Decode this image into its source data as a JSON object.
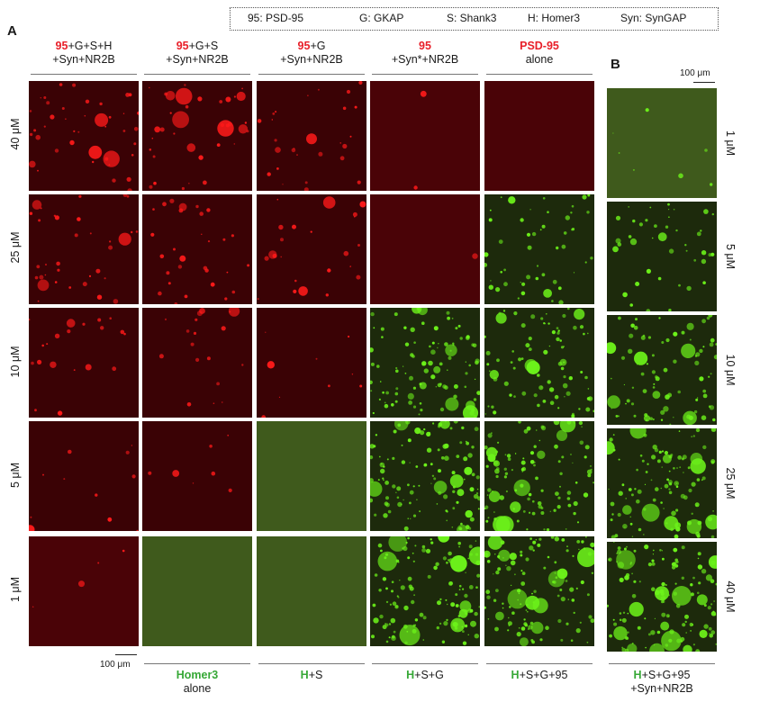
{
  "legend": {
    "items": [
      "95: PSD-95",
      "G: GKAP",
      "S: Shank3",
      "H: Homer3",
      "Syn: SynGAP"
    ]
  },
  "panels": {
    "a": "A",
    "b": "B"
  },
  "top_columns": [
    {
      "hl": "95",
      "rest1": "+G+S+H",
      "line2": "+Syn+NR2B"
    },
    {
      "hl": "95",
      "rest1": "+G+S",
      "line2": "+Syn+NR2B"
    },
    {
      "hl": "95",
      "rest1": "+G",
      "line2": "+Syn+NR2B"
    },
    {
      "hl": "95",
      "rest1": "",
      "line2": "+Syn*+NR2B"
    },
    {
      "hl": "PSD-95",
      "rest1": "",
      "line2": "alone"
    }
  ],
  "left_rows": [
    "40 μM",
    "25 μM",
    "10 μM",
    "5 μM",
    "1 μM"
  ],
  "right_rows": [
    "1 μM",
    "5 μM",
    "10 μM",
    "25 μM",
    "40 μM"
  ],
  "bottom_columns": [
    {
      "hl": "Homer3",
      "rest1": "",
      "line2": "alone"
    },
    {
      "hl": "H",
      "rest1": "+S",
      "line2": ""
    },
    {
      "hl": "H",
      "rest1": "+S+G",
      "line2": ""
    },
    {
      "hl": "H",
      "rest1": "+S+G+95",
      "line2": ""
    },
    {
      "hl": "H",
      "rest1": "+S+G+95",
      "line2": "+Syn+NR2B"
    }
  ],
  "scale_bars": {
    "top": "100 μm",
    "bottom": "100 μm"
  },
  "colors": {
    "red_highlight": "#e8202a",
    "green_highlight": "#36a836",
    "red_bg": "#3a0205",
    "green_bg": "#1d2a0c",
    "red_dot": "#ff1a1a",
    "green_dot": "#6cf21a"
  },
  "tiles": [
    {
      "panel": "A",
      "row": 0,
      "col": 0,
      "color": "red",
      "level": 0.9
    },
    {
      "panel": "A",
      "row": 0,
      "col": 1,
      "color": "red",
      "level": 0.8
    },
    {
      "panel": "A",
      "row": 0,
      "col": 2,
      "color": "red",
      "level": 0.6
    },
    {
      "panel": "A",
      "row": 0,
      "col": 3,
      "color": "red",
      "level": 0.05
    },
    {
      "panel": "A",
      "row": 0,
      "col": 4,
      "color": "red",
      "level": 0.0
    },
    {
      "panel": "A",
      "row": 1,
      "col": 0,
      "color": "red",
      "level": 0.75
    },
    {
      "panel": "A",
      "row": 1,
      "col": 1,
      "color": "red",
      "level": 0.65
    },
    {
      "panel": "A",
      "row": 1,
      "col": 2,
      "color": "red",
      "level": 0.5
    },
    {
      "panel": "A",
      "row": 1,
      "col": 3,
      "color": "red",
      "level": 0.03
    },
    {
      "panel": "A",
      "row": 1,
      "col": 4,
      "color": "green",
      "level": 0.35
    },
    {
      "panel": "A",
      "row": 2,
      "col": 0,
      "color": "red",
      "level": 0.45
    },
    {
      "panel": "A",
      "row": 2,
      "col": 1,
      "color": "red",
      "level": 0.4
    },
    {
      "panel": "A",
      "row": 2,
      "col": 2,
      "color": "red",
      "level": 0.2
    },
    {
      "panel": "A",
      "row": 2,
      "col": 3,
      "color": "green",
      "level": 0.7
    },
    {
      "panel": "A",
      "row": 2,
      "col": 4,
      "color": "green",
      "level": 0.6
    },
    {
      "panel": "A",
      "row": 3,
      "col": 0,
      "color": "red",
      "level": 0.25
    },
    {
      "panel": "A",
      "row": 3,
      "col": 1,
      "color": "red",
      "level": 0.15
    },
    {
      "panel": "A",
      "row": 3,
      "col": 2,
      "color": "green",
      "level": 0.0
    },
    {
      "panel": "A",
      "row": 3,
      "col": 3,
      "color": "green",
      "level": 0.85
    },
    {
      "panel": "A",
      "row": 3,
      "col": 4,
      "color": "green",
      "level": 0.8
    },
    {
      "panel": "A",
      "row": 4,
      "col": 0,
      "color": "red",
      "level": 0.08
    },
    {
      "panel": "A",
      "row": 4,
      "col": 1,
      "color": "green",
      "level": 0.0
    },
    {
      "panel": "A",
      "row": 4,
      "col": 2,
      "color": "green",
      "level": 0.0
    },
    {
      "panel": "A",
      "row": 4,
      "col": 3,
      "color": "green",
      "level": 0.95
    },
    {
      "panel": "A",
      "row": 4,
      "col": 4,
      "color": "green",
      "level": 0.9
    },
    {
      "panel": "B",
      "row": 0,
      "col": 0,
      "color": "green",
      "level": 0.05
    },
    {
      "panel": "B",
      "row": 1,
      "col": 0,
      "color": "green",
      "level": 0.3
    },
    {
      "panel": "B",
      "row": 2,
      "col": 0,
      "color": "green",
      "level": 0.6
    },
    {
      "panel": "B",
      "row": 3,
      "col": 0,
      "color": "green",
      "level": 0.8
    },
    {
      "panel": "B",
      "row": 4,
      "col": 0,
      "color": "green",
      "level": 0.95
    }
  ]
}
